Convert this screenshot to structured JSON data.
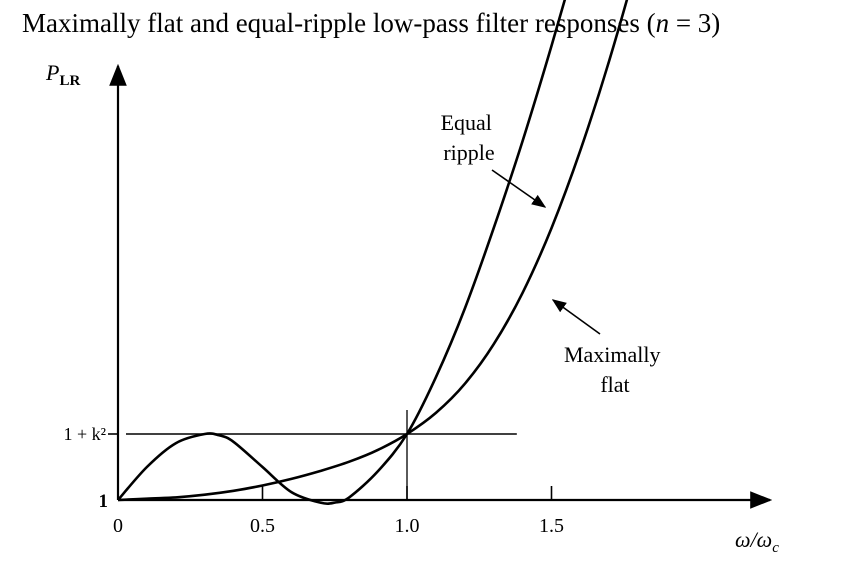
{
  "title": {
    "main": "Maximally flat and equal-ripple low-pass filter responses (",
    "var": "n",
    "rest": " = 3)"
  },
  "chart_data": {
    "type": "line",
    "ylabel": "P",
    "ylabel_sub": "LR",
    "xlabel_num": "ω/ω",
    "xlabel_sub": "c",
    "xlim": [
      0,
      2.25
    ],
    "x_ticks": [
      {
        "value": 0,
        "label": "0"
      },
      {
        "value": 0.5,
        "label": "0.5"
      },
      {
        "value": 1.0,
        "label": "1.0"
      },
      {
        "value": 1.5,
        "label": "1.5"
      }
    ],
    "y_marks": [
      {
        "value": 1,
        "label": "1"
      },
      {
        "value": 1.5,
        "label": "1 + k²"
      }
    ],
    "reference_line": {
      "y": 1.5,
      "x_end": 1.38
    },
    "series": [
      {
        "name": "Equal ripple",
        "x": [
          0,
          0.1,
          0.2,
          0.3,
          0.35,
          0.4,
          0.5,
          0.6,
          0.7,
          0.75,
          0.8,
          0.9,
          1.0,
          1.1,
          1.2,
          1.3,
          1.4,
          1.5,
          1.6,
          1.7
        ],
        "y": [
          1,
          1.25,
          1.43,
          1.5,
          1.49,
          1.44,
          1.25,
          1.06,
          0.98,
          0.98,
          1.02,
          1.22,
          1.5,
          1.93,
          2.45,
          3.06,
          3.72,
          4.44,
          5.2,
          5.98
        ]
      },
      {
        "name": "Maximally flat",
        "x": [
          0,
          0.1,
          0.2,
          0.3,
          0.4,
          0.5,
          0.6,
          0.7,
          0.8,
          0.9,
          1.0,
          1.1,
          1.2,
          1.3,
          1.4,
          1.5,
          1.6,
          1.7,
          1.8,
          1.9
        ],
        "y": [
          1,
          1.01,
          1.02,
          1.04,
          1.07,
          1.11,
          1.16,
          1.22,
          1.29,
          1.38,
          1.5,
          1.66,
          1.88,
          2.18,
          2.57,
          3.06,
          3.65,
          4.33,
          5.1,
          5.95
        ]
      }
    ],
    "annotations": [
      {
        "lines": [
          "Equal",
          "ripple"
        ],
        "series": "Equal ripple"
      },
      {
        "lines": [
          "Maximally",
          "flat"
        ],
        "series": "Maximally flat"
      }
    ]
  }
}
